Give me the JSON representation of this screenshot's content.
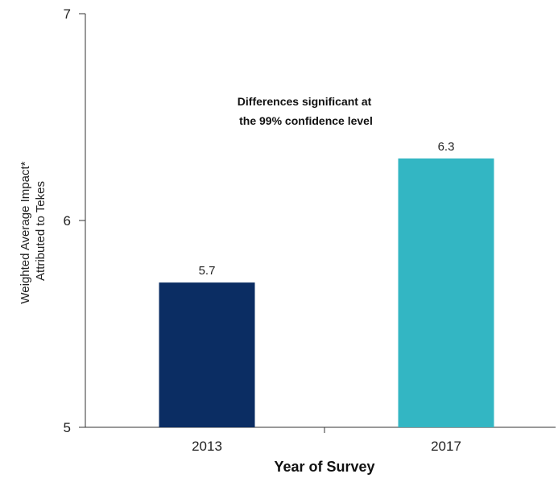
{
  "chart_data": {
    "type": "bar",
    "categories": [
      "2013",
      "2017"
    ],
    "values": [
      5.7,
      6.3
    ],
    "data_labels": [
      "5.7",
      "6.3"
    ],
    "bar_colors": [
      "#0b2d63",
      "#33b6c3"
    ],
    "xlabel": "Year of Survey",
    "ylabel_lines": [
      "Weighted Average Impact*",
      "Attributed to Tekes"
    ],
    "ylim": [
      5,
      7
    ],
    "yticks": [
      5,
      6,
      7
    ],
    "ytick_labels": [
      "5",
      "6",
      "7"
    ],
    "annotation_lines": [
      "Differences significant at",
      "the 99% confidence level"
    ],
    "grid": false,
    "legend": "none"
  }
}
